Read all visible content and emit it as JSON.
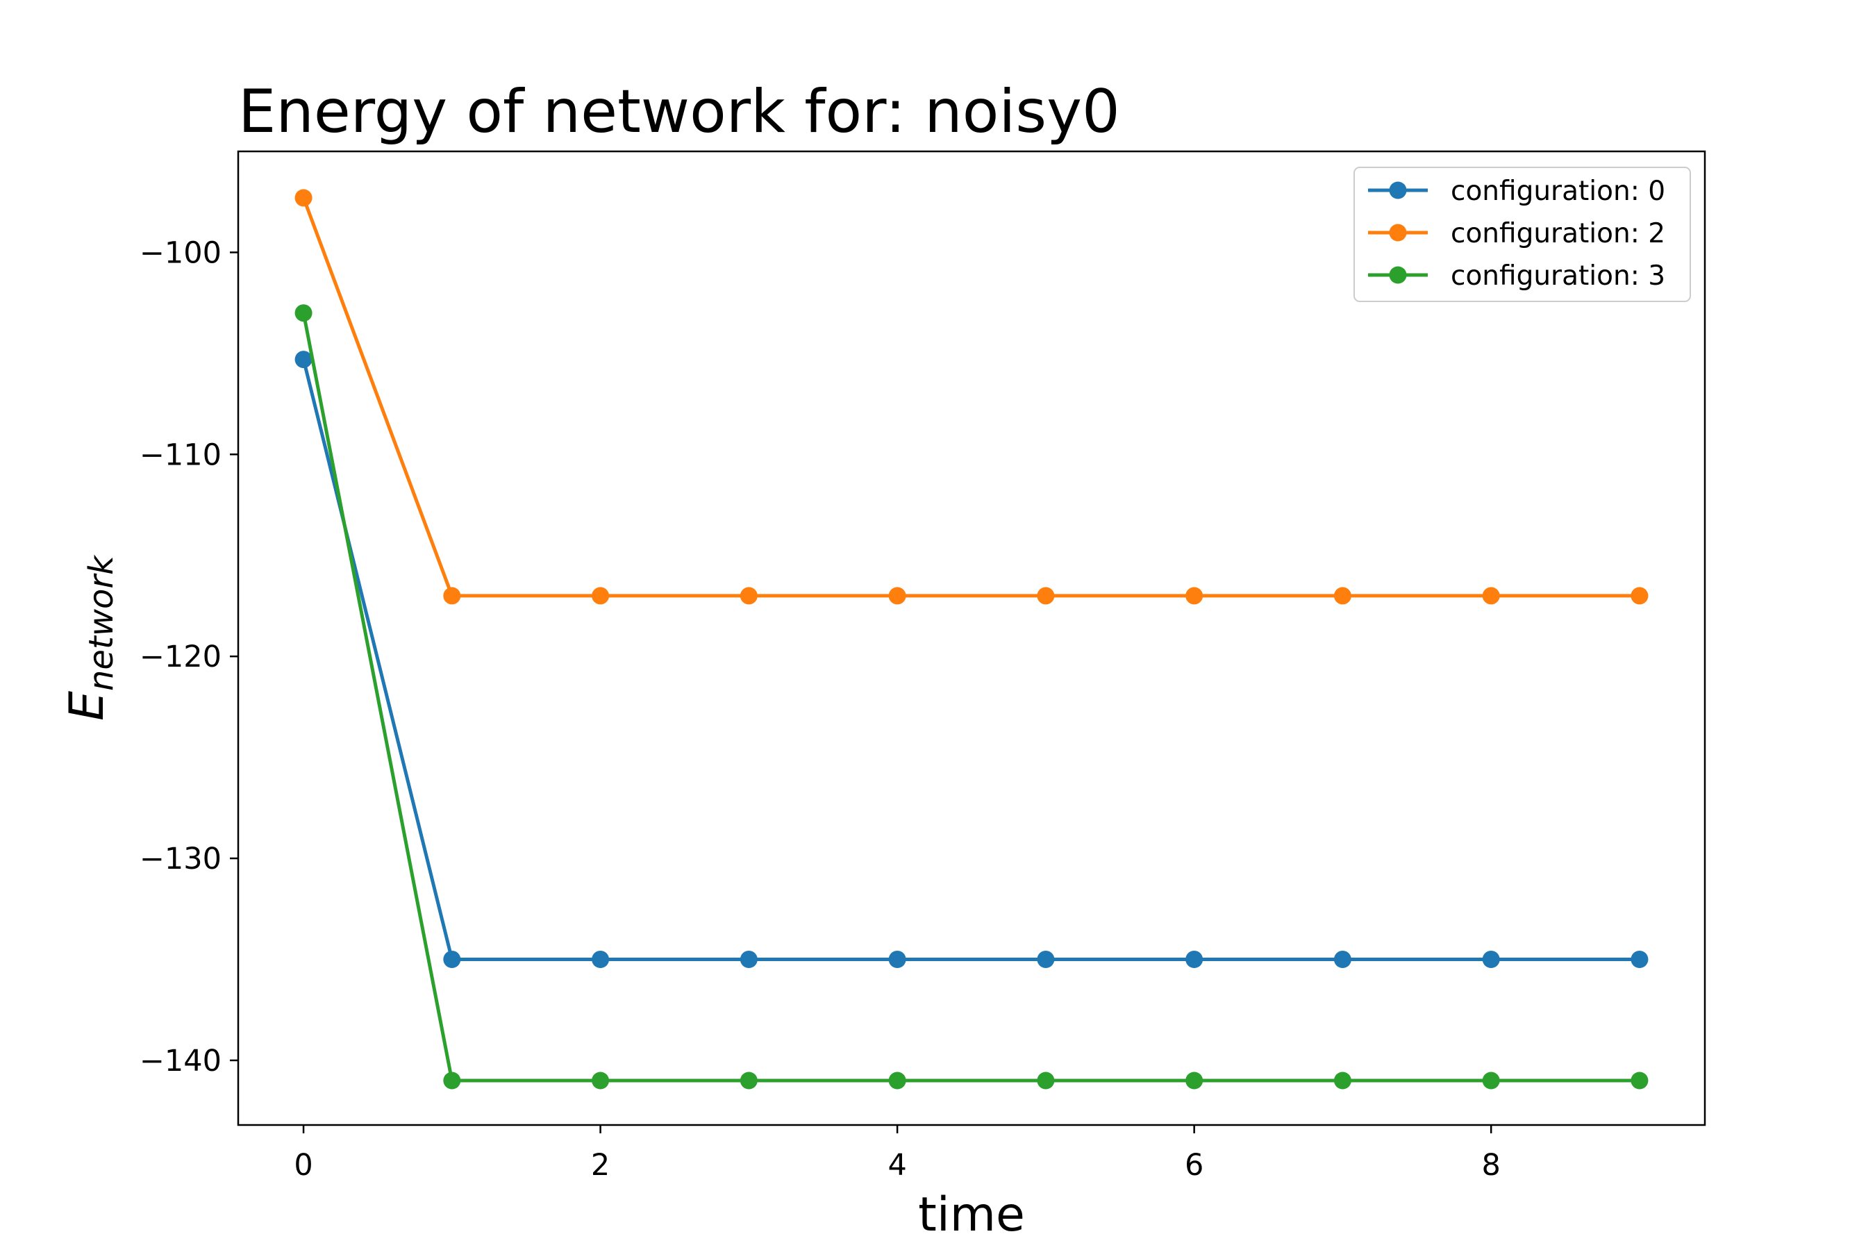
{
  "chart_data": {
    "type": "line",
    "title": "Energy of network for: noisy0",
    "xlabel": "time",
    "ylabel_main": "E",
    "ylabel_sub": "network",
    "xlim": [
      -0.44,
      9.44
    ],
    "ylim": [
      -143.2,
      -95.0
    ],
    "xticks": [
      0,
      2,
      4,
      6,
      8
    ],
    "yticks": [
      -100,
      -110,
      -120,
      -130,
      -140
    ],
    "ytick_labels": [
      "−100",
      "−110",
      "−120",
      "−130",
      "−140"
    ],
    "x": [
      0,
      1,
      2,
      3,
      4,
      5,
      6,
      7,
      8,
      9
    ],
    "legend_position": "top-right",
    "series": [
      {
        "name": "configuration: 0",
        "color": "#1f77b4",
        "values": [
          -105.3,
          -135,
          -135,
          -135,
          -135,
          -135,
          -135,
          -135,
          -135,
          -135
        ]
      },
      {
        "name": "configuration: 2",
        "color": "#ff7f0e",
        "values": [
          -97.3,
          -117,
          -117,
          -117,
          -117,
          -117,
          -117,
          -117,
          -117,
          -117
        ]
      },
      {
        "name": "configuration: 3",
        "color": "#2ca02c",
        "values": [
          -103,
          -141,
          -141,
          -141,
          -141,
          -141,
          -141,
          -141,
          -141,
          -141
        ]
      }
    ]
  }
}
